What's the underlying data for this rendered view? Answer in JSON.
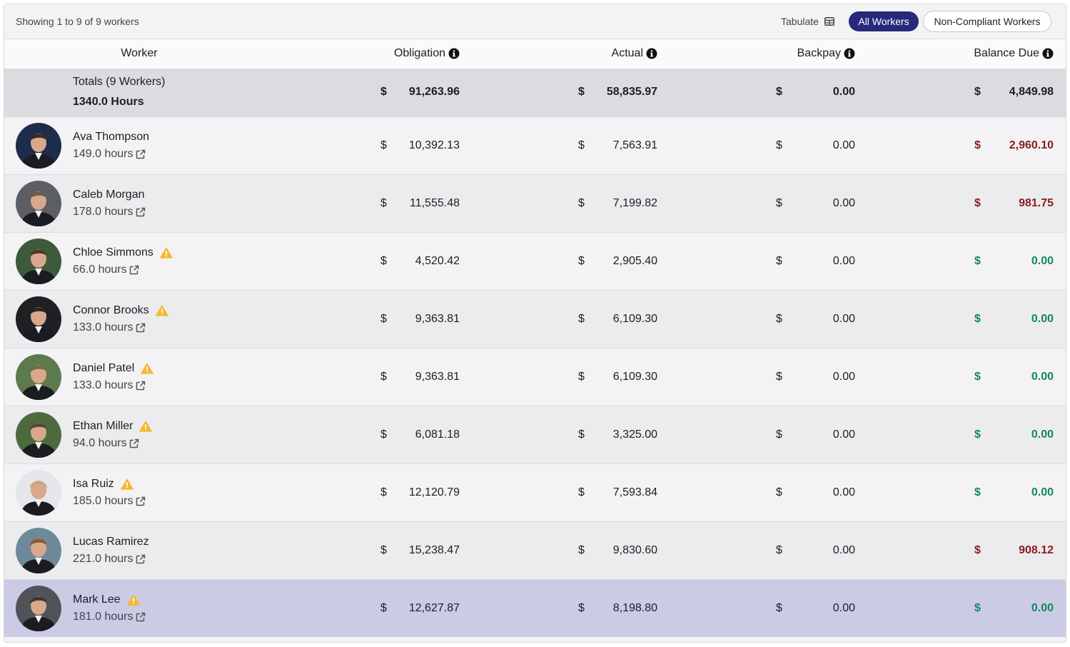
{
  "header": {
    "showing": "Showing 1 to 9 of 9 workers",
    "tabulate": "Tabulate",
    "tabs": [
      "All Workers",
      "Non-Compliant Workers"
    ]
  },
  "table": {
    "columns": [
      "Worker",
      "Obligation",
      "Actual",
      "Backpay",
      "Balance Due"
    ],
    "currency": "$",
    "totals": {
      "label": "Totals (9 Workers)",
      "hours": "1340.0 Hours",
      "obligation": "91,263.96",
      "actual": "58,835.97",
      "backpay": "0.00",
      "balance_due": "4,849.98"
    },
    "rows": [
      {
        "name": "Ava Thompson",
        "hours": "149.0 hours",
        "warning": false,
        "obligation": "10,392.13",
        "actual": "7,563.91",
        "backpay": "0.00",
        "balance_due": "2,960.10"
      },
      {
        "name": "Caleb Morgan",
        "hours": "178.0 hours",
        "warning": false,
        "obligation": "11,555.48",
        "actual": "7,199.82",
        "backpay": "0.00",
        "balance_due": "981.75"
      },
      {
        "name": "Chloe Simmons",
        "hours": "66.0 hours",
        "warning": true,
        "obligation": "4,520.42",
        "actual": "2,905.40",
        "backpay": "0.00",
        "balance_due": "0.00"
      },
      {
        "name": "Connor Brooks",
        "hours": "133.0 hours",
        "warning": true,
        "obligation": "9,363.81",
        "actual": "6,109.30",
        "backpay": "0.00",
        "balance_due": "0.00"
      },
      {
        "name": "Daniel Patel",
        "hours": "133.0 hours",
        "warning": true,
        "obligation": "9,363.81",
        "actual": "6,109.30",
        "backpay": "0.00",
        "balance_due": "0.00"
      },
      {
        "name": "Ethan Miller",
        "hours": "94.0 hours",
        "warning": true,
        "obligation": "6,081.18",
        "actual": "3,325.00",
        "backpay": "0.00",
        "balance_due": "0.00"
      },
      {
        "name": "Isa Ruiz",
        "hours": "185.0 hours",
        "warning": true,
        "obligation": "12,120.79",
        "actual": "7,593.84",
        "backpay": "0.00",
        "balance_due": "0.00"
      },
      {
        "name": "Lucas Ramirez",
        "hours": "221.0 hours",
        "warning": false,
        "obligation": "15,238.47",
        "actual": "9,830.60",
        "backpay": "0.00",
        "balance_due": "908.12"
      },
      {
        "name": "Mark Lee",
        "hours": "181.0 hours",
        "warning": true,
        "obligation": "12,627.87",
        "actual": "8,198.80",
        "backpay": "0.00",
        "balance_due": "0.00"
      }
    ]
  }
}
